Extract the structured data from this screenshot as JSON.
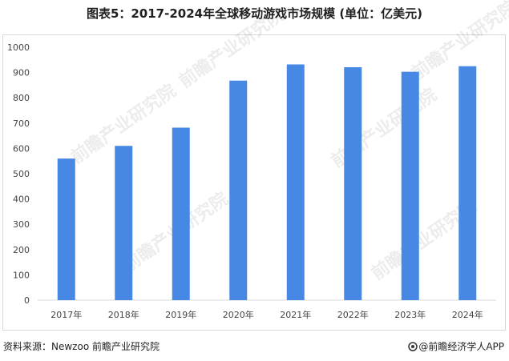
{
  "title": "图表5：2017-2024年全球移动游戏市场规模 (单位：亿美元)",
  "watermark": "前瞻产业研究院",
  "footer": {
    "source": "资料来源：Newzoo 前瞻产业研究院",
    "brand": "@前瞻经济学人APP"
  },
  "colors": {
    "bar": "#4788e4",
    "grid_axis": "#d9d9d9"
  },
  "chart_data": {
    "type": "bar",
    "categories": [
      "2017年",
      "2018年",
      "2019年",
      "2020年",
      "2021年",
      "2022年",
      "2023年",
      "2024年"
    ],
    "values": [
      560,
      610,
      682,
      868,
      932,
      921,
      903,
      925
    ],
    "title": "图表5：2017-2024年全球移动游戏市场规模 (单位：亿美元)",
    "xlabel": "",
    "ylabel": "",
    "ylim": [
      0,
      1000
    ],
    "yticks": [
      0,
      100,
      200,
      300,
      400,
      500,
      600,
      700,
      800,
      900,
      1000
    ],
    "grid": false,
    "legend": "none"
  }
}
